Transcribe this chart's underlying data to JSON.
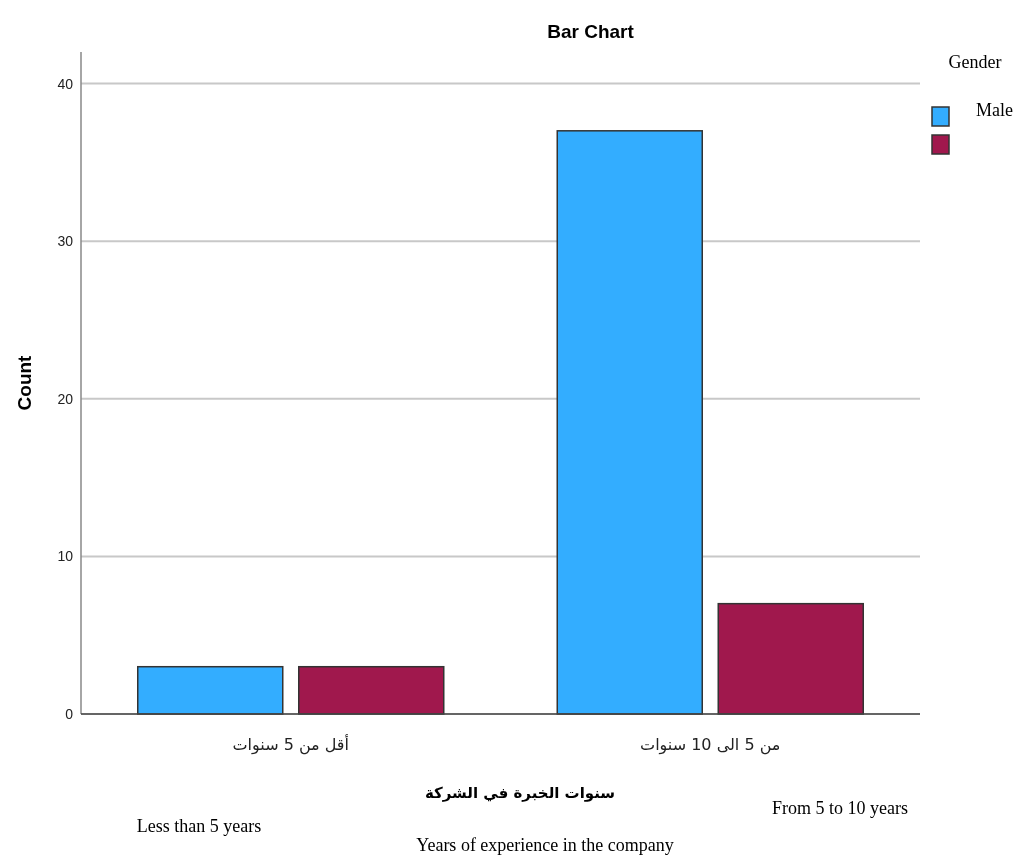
{
  "chart_data": {
    "type": "bar",
    "title": "Bar Chart",
    "xlabel": "سنوات الخبرة في الشركة",
    "ylabel": "Count",
    "legend_title": "Gender",
    "categories": [
      "أقل من 5 سنوات",
      "من 5 الى 10 سنوات"
    ],
    "series": [
      {
        "name": "Male",
        "color": "#33adff",
        "values": [
          3,
          37
        ]
      },
      {
        "color": "#a0184d",
        "values": [
          3,
          7
        ]
      }
    ],
    "ylim": [
      0,
      42
    ],
    "yticks": [
      0,
      10,
      20,
      30,
      40
    ],
    "grid": "y",
    "legend": "top right",
    "annotations": [
      "Less than 5 years",
      "From 5 to 10 years",
      "Years of experience in the company"
    ]
  }
}
